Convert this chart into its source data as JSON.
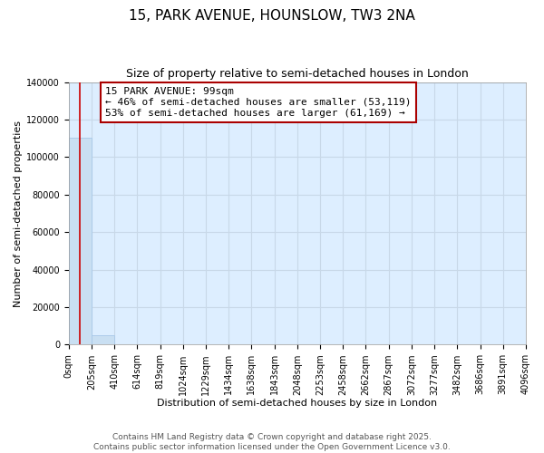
{
  "title": "15, PARK AVENUE, HOUNSLOW, TW3 2NA",
  "subtitle": "Size of property relative to semi-detached houses in London",
  "xlabel": "Distribution of semi-detached houses by size in London",
  "ylabel": "Number of semi-detached properties",
  "property_size": 99,
  "annotation_text": "15 PARK AVENUE: 99sqm\n← 46% of semi-detached houses are smaller (53,119)\n53% of semi-detached houses are larger (61,169) →",
  "bin_edges": [
    0,
    205,
    410,
    614,
    819,
    1024,
    1229,
    1434,
    1638,
    1843,
    2048,
    2253,
    2458,
    2662,
    2867,
    3072,
    3277,
    3482,
    3686,
    3891,
    4096
  ],
  "bin_counts": [
    110288,
    5050,
    0,
    0,
    0,
    0,
    0,
    0,
    0,
    0,
    0,
    0,
    0,
    0,
    0,
    0,
    0,
    0,
    0,
    0
  ],
  "bar_color": "#c9dff2",
  "bar_edge_color": "#a8c8e8",
  "line_color": "#cc0000",
  "annotation_box_color": "#aa0000",
  "grid_color": "#c8d8e8",
  "background_color": "#ddeeff",
  "ylim": [
    0,
    140000
  ],
  "yticks": [
    0,
    20000,
    40000,
    60000,
    80000,
    100000,
    120000,
    140000
  ],
  "footer": "Contains HM Land Registry data © Crown copyright and database right 2025.\nContains public sector information licensed under the Open Government Licence v3.0.",
  "title_fontsize": 11,
  "subtitle_fontsize": 9,
  "annotation_fontsize": 8,
  "axis_label_fontsize": 8,
  "tick_fontsize": 7,
  "footer_fontsize": 6.5
}
